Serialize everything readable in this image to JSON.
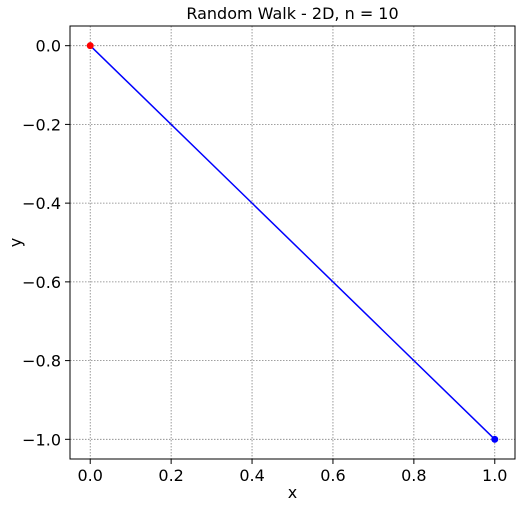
{
  "chart_data": {
    "type": "line",
    "title": "Random Walk - 2D, n = 10",
    "xlabel": "x",
    "ylabel": "y",
    "xlim": [
      -0.05,
      1.05
    ],
    "ylim": [
      -1.05,
      0.05
    ],
    "xticks": [
      0.0,
      0.2,
      0.4,
      0.6,
      0.8,
      1.0
    ],
    "xtick_labels": [
      "0.0",
      "0.2",
      "0.4",
      "0.6",
      "0.8",
      "1.0"
    ],
    "yticks": [
      0.0,
      -0.2,
      -0.4,
      -0.6,
      -0.8,
      -1.0
    ],
    "ytick_labels": [
      "0.0",
      "−0.2",
      "−0.4",
      "−0.6",
      "−0.8",
      "−1.0"
    ],
    "grid": true,
    "series": [
      {
        "x": [
          0.0,
          1.0
        ],
        "y": [
          0.0,
          -1.0
        ],
        "color": "#0000ff"
      }
    ],
    "markers": [
      {
        "x": 0.0,
        "y": 0.0,
        "color": "#ff0000"
      },
      {
        "x": 1.0,
        "y": -1.0,
        "color": "#0000ff"
      }
    ]
  }
}
